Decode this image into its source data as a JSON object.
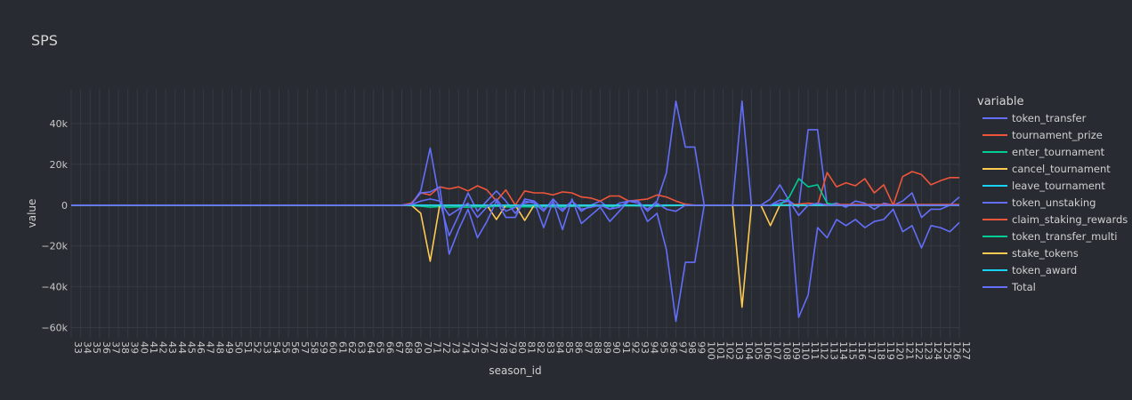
{
  "chart_data": {
    "type": "line",
    "title": "SPS",
    "xlabel": "season_id",
    "ylabel": "value",
    "legend_title": "variable",
    "legend_position": "right",
    "grid": true,
    "x_range": [
      33,
      127
    ],
    "ylim": [
      -65000,
      57000
    ],
    "y_ticks": [
      40000,
      20000,
      0,
      -20000,
      -40000,
      -60000
    ],
    "y_tick_labels": [
      "40k",
      "20k",
      "0",
      "−20k",
      "−40k",
      "−60k"
    ],
    "series": [
      {
        "name": "token_transfer",
        "color": "#636efa",
        "points": [
          [
            33,
            0
          ],
          [
            68,
            0
          ],
          [
            69,
            500
          ],
          [
            70,
            7000
          ],
          [
            71,
            28000
          ],
          [
            72,
            2000
          ],
          [
            73,
            -15000
          ],
          [
            74,
            -5000
          ],
          [
            75,
            6000
          ],
          [
            76,
            -3000
          ],
          [
            77,
            2000
          ],
          [
            78,
            7000
          ],
          [
            79,
            2000
          ],
          [
            80,
            -4000
          ],
          [
            81,
            2000
          ],
          [
            82,
            1000
          ],
          [
            83,
            -3000
          ],
          [
            84,
            3000
          ],
          [
            85,
            -2000
          ],
          [
            86,
            2000
          ],
          [
            87,
            -3000
          ],
          [
            88,
            0
          ],
          [
            89,
            2000
          ],
          [
            90,
            -2000
          ],
          [
            91,
            1000
          ],
          [
            92,
            2000
          ],
          [
            93,
            1000
          ],
          [
            94,
            -2000
          ],
          [
            95,
            2000
          ],
          [
            96,
            16000
          ],
          [
            97,
            51000
          ],
          [
            98,
            28500
          ],
          [
            99,
            28500
          ],
          [
            100,
            0
          ],
          [
            103,
            0
          ],
          [
            104,
            51000
          ],
          [
            105,
            0
          ],
          [
            106,
            0
          ],
          [
            107,
            3000
          ],
          [
            108,
            10000
          ],
          [
            109,
            2000
          ],
          [
            110,
            -1000
          ],
          [
            111,
            37000
          ],
          [
            112,
            37000
          ],
          [
            113,
            0
          ],
          [
            114,
            1000
          ],
          [
            115,
            -1000
          ],
          [
            116,
            2000
          ],
          [
            117,
            1000
          ],
          [
            118,
            -2000
          ],
          [
            119,
            1000
          ],
          [
            120,
            0
          ],
          [
            121,
            2000
          ],
          [
            122,
            6000
          ],
          [
            123,
            -6000
          ],
          [
            124,
            -2000
          ],
          [
            125,
            -2000
          ],
          [
            126,
            0
          ],
          [
            127,
            4000
          ]
        ]
      },
      {
        "name": "tournament_prize",
        "color": "#ef553b",
        "points": [
          [
            33,
            0
          ],
          [
            68,
            0
          ],
          [
            69,
            1000
          ],
          [
            70,
            6000
          ],
          [
            71,
            5000
          ],
          [
            72,
            9000
          ],
          [
            73,
            8000
          ],
          [
            74,
            9000
          ],
          [
            75,
            7000
          ],
          [
            76,
            9500
          ],
          [
            77,
            7500
          ],
          [
            78,
            2000
          ],
          [
            79,
            7500
          ],
          [
            80,
            0
          ],
          [
            81,
            7000
          ],
          [
            82,
            6000
          ],
          [
            83,
            6000
          ],
          [
            84,
            5000
          ],
          [
            85,
            6500
          ],
          [
            86,
            6000
          ],
          [
            87,
            4000
          ],
          [
            88,
            3500
          ],
          [
            89,
            2000
          ],
          [
            90,
            4500
          ],
          [
            91,
            4500
          ],
          [
            92,
            2000
          ],
          [
            93,
            2500
          ],
          [
            94,
            3000
          ],
          [
            95,
            5000
          ],
          [
            96,
            4000
          ],
          [
            97,
            2000
          ],
          [
            98,
            500
          ],
          [
            99,
            0
          ],
          [
            112,
            0
          ],
          [
            113,
            16000
          ],
          [
            114,
            9000
          ],
          [
            115,
            11000
          ],
          [
            116,
            9500
          ],
          [
            117,
            13000
          ],
          [
            118,
            6000
          ],
          [
            119,
            10000
          ],
          [
            120,
            0
          ],
          [
            121,
            14000
          ],
          [
            122,
            16500
          ],
          [
            123,
            15000
          ],
          [
            124,
            10000
          ],
          [
            125,
            12000
          ],
          [
            126,
            13500
          ],
          [
            127,
            13500
          ]
        ]
      },
      {
        "name": "enter_tournament",
        "color": "#00cc96",
        "points": [
          [
            33,
            0
          ],
          [
            68,
            0
          ],
          [
            70,
            -500
          ],
          [
            71,
            -1000
          ],
          [
            72,
            -700
          ],
          [
            73,
            -1000
          ],
          [
            74,
            -800
          ],
          [
            75,
            -1000
          ],
          [
            76,
            -700
          ],
          [
            77,
            -1000
          ],
          [
            78,
            -500
          ],
          [
            79,
            -800
          ],
          [
            80,
            -1000
          ],
          [
            81,
            -700
          ],
          [
            82,
            -900
          ],
          [
            83,
            -600
          ],
          [
            84,
            -800
          ],
          [
            85,
            -700
          ],
          [
            86,
            -600
          ],
          [
            87,
            -500
          ],
          [
            88,
            -400
          ],
          [
            89,
            -500
          ],
          [
            90,
            -600
          ],
          [
            91,
            -400
          ],
          [
            92,
            -300
          ],
          [
            93,
            -400
          ],
          [
            94,
            -300
          ],
          [
            95,
            -500
          ],
          [
            96,
            -300
          ],
          [
            97,
            -200
          ],
          [
            98,
            0
          ],
          [
            127,
            0
          ]
        ]
      },
      {
        "name": "cancel_tournament",
        "color": "#fecb52",
        "points": [
          [
            33,
            0
          ],
          [
            69,
            0
          ],
          [
            70,
            -4000
          ],
          [
            71,
            -27500
          ],
          [
            72,
            0
          ],
          [
            73,
            0
          ],
          [
            74,
            0
          ],
          [
            75,
            0
          ],
          [
            76,
            0
          ],
          [
            77,
            0
          ],
          [
            78,
            -7000
          ],
          [
            79,
            0
          ],
          [
            80,
            0
          ],
          [
            81,
            -7500
          ],
          [
            82,
            0
          ],
          [
            83,
            0
          ],
          [
            84,
            0
          ],
          [
            100,
            0
          ],
          [
            103,
            0
          ],
          [
            104,
            -50000
          ],
          [
            105,
            0
          ],
          [
            106,
            0
          ],
          [
            107,
            -10000
          ],
          [
            108,
            0
          ],
          [
            127,
            0
          ]
        ]
      },
      {
        "name": "leave_tournament",
        "color": "#19d3f3",
        "points": [
          [
            33,
            0
          ],
          [
            127,
            0
          ]
        ]
      },
      {
        "name": "token_unstaking",
        "color": "#636efa",
        "points": [
          [
            33,
            0
          ],
          [
            68,
            0
          ],
          [
            69,
            500
          ],
          [
            70,
            6000
          ],
          [
            71,
            6500
          ],
          [
            72,
            9000
          ],
          [
            73,
            -24000
          ],
          [
            74,
            -12000
          ],
          [
            75,
            -2000
          ],
          [
            76,
            -16000
          ],
          [
            77,
            -8000
          ],
          [
            78,
            2000
          ],
          [
            79,
            -6000
          ],
          [
            80,
            -6000
          ],
          [
            81,
            3000
          ],
          [
            82,
            2000
          ],
          [
            83,
            -11000
          ],
          [
            84,
            2000
          ],
          [
            85,
            -12000
          ],
          [
            86,
            3000
          ],
          [
            87,
            -9000
          ],
          [
            88,
            -5000
          ],
          [
            89,
            -1000
          ],
          [
            90,
            -8000
          ],
          [
            91,
            -3000
          ],
          [
            92,
            2000
          ],
          [
            93,
            2000
          ],
          [
            94,
            -8000
          ],
          [
            95,
            -4000
          ],
          [
            96,
            -22000
          ],
          [
            97,
            -57000
          ],
          [
            98,
            -28000
          ],
          [
            99,
            -28000
          ],
          [
            100,
            0
          ],
          [
            107,
            0
          ],
          [
            108,
            1000
          ],
          [
            109,
            2000
          ],
          [
            110,
            -55000
          ],
          [
            111,
            -44000
          ],
          [
            112,
            -11000
          ],
          [
            113,
            -16000
          ],
          [
            114,
            -7000
          ],
          [
            115,
            -10000
          ],
          [
            116,
            -7000
          ],
          [
            117,
            -11000
          ],
          [
            118,
            -8000
          ],
          [
            119,
            -7000
          ],
          [
            120,
            -2000
          ],
          [
            121,
            -13000
          ],
          [
            122,
            -10000
          ],
          [
            123,
            -21000
          ],
          [
            124,
            -10000
          ],
          [
            125,
            -11000
          ],
          [
            126,
            -13000
          ],
          [
            127,
            -8500
          ]
        ]
      },
      {
        "name": "claim_staking_rewards",
        "color": "#ef553b",
        "points": [
          [
            33,
            0
          ],
          [
            108,
            0
          ],
          [
            110,
            500
          ],
          [
            111,
            1000
          ],
          [
            112,
            500
          ],
          [
            113,
            300
          ],
          [
            127,
            300
          ]
        ]
      },
      {
        "name": "token_transfer_multi",
        "color": "#00cc96",
        "points": [
          [
            33,
            0
          ],
          [
            108,
            0
          ],
          [
            109,
            4000
          ],
          [
            110,
            13000
          ],
          [
            111,
            9000
          ],
          [
            112,
            10000
          ],
          [
            113,
            1000
          ],
          [
            114,
            0
          ],
          [
            127,
            0
          ]
        ]
      },
      {
        "name": "stake_tokens",
        "color": "#fecb52",
        "points": [
          [
            33,
            0
          ],
          [
            127,
            0
          ]
        ]
      },
      {
        "name": "token_award",
        "color": "#19d3f3",
        "points": [
          [
            33,
            0
          ],
          [
            127,
            0
          ]
        ]
      },
      {
        "name": "Total",
        "color": "#636efa",
        "points": [
          [
            33,
            0
          ],
          [
            68,
            0
          ],
          [
            69,
            300
          ],
          [
            70,
            2000
          ],
          [
            71,
            3000
          ],
          [
            72,
            2000
          ],
          [
            73,
            -5000
          ],
          [
            74,
            -2000
          ],
          [
            75,
            1000
          ],
          [
            76,
            -6000
          ],
          [
            77,
            -1000
          ],
          [
            78,
            3000
          ],
          [
            79,
            -3000
          ],
          [
            80,
            -1000
          ],
          [
            81,
            1000
          ],
          [
            82,
            2000
          ],
          [
            83,
            -2000
          ],
          [
            84,
            1000
          ],
          [
            85,
            -3000
          ],
          [
            86,
            2000
          ],
          [
            87,
            -2000
          ],
          [
            88,
            -1000
          ],
          [
            89,
            0
          ],
          [
            90,
            -2000
          ],
          [
            91,
            -1000
          ],
          [
            92,
            2000
          ],
          [
            93,
            2000
          ],
          [
            94,
            -3000
          ],
          [
            95,
            1000
          ],
          [
            96,
            -2000
          ],
          [
            97,
            -3000
          ],
          [
            98,
            0
          ],
          [
            100,
            0
          ],
          [
            107,
            0
          ],
          [
            108,
            2500
          ],
          [
            109,
            2000
          ],
          [
            110,
            -5000
          ],
          [
            111,
            0
          ],
          [
            112,
            1000
          ],
          [
            113,
            0
          ],
          [
            127,
            0
          ]
        ]
      }
    ]
  }
}
